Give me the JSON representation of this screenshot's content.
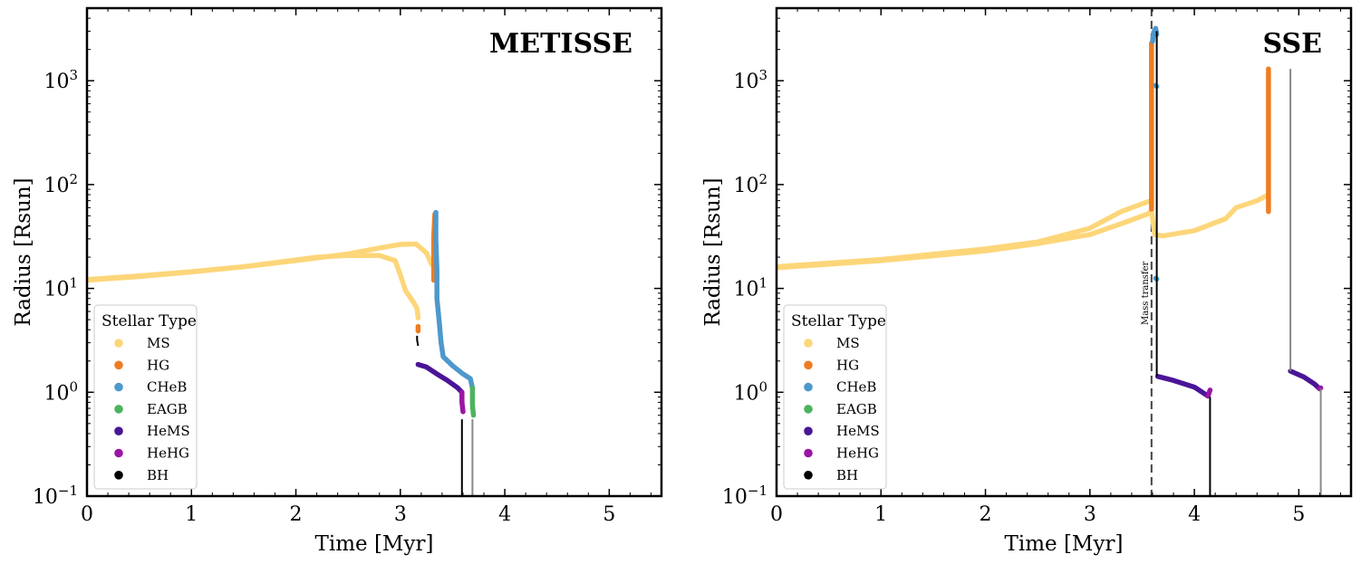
{
  "chart_data": [
    {
      "type": "line",
      "title": "METISSE",
      "xlabel": "Time [Myr]",
      "ylabel": "Radius [Rsun]",
      "xlim": [
        0,
        5.5
      ],
      "ylim": [
        0.1,
        5000
      ],
      "yscale": "log",
      "grid": false,
      "x_ticks": [
        "0",
        "1",
        "2",
        "3",
        "4",
        "5"
      ],
      "y_ticks": [
        {
          "base": "10",
          "exp": "−1"
        },
        {
          "base": "10",
          "exp": "0"
        },
        {
          "base": "10",
          "exp": "1"
        },
        {
          "base": "10",
          "exp": "2"
        },
        {
          "base": "10",
          "exp": "3"
        }
      ],
      "legend": {
        "title": "Stellar Type",
        "placement": "lower-left",
        "entries": [
          {
            "label": "MS",
            "color": "#fdd67a"
          },
          {
            "label": "HG",
            "color": "#ee7d22"
          },
          {
            "label": "CHeB",
            "color": "#4e98cc"
          },
          {
            "label": "EAGB",
            "color": "#4db35d"
          },
          {
            "label": "HeMS",
            "color": "#4a1597"
          },
          {
            "label": "HeHG",
            "color": "#9a16a4"
          },
          {
            "label": "BH",
            "color": "#000000"
          }
        ]
      },
      "series": [
        {
          "type": "MS",
          "color": "#fdd67a",
          "points": [
            [
              0,
              12.2
            ],
            [
              0.5,
              13.2
            ],
            [
              1,
              14.5
            ],
            [
              1.5,
              16.2
            ],
            [
              2,
              18.5
            ],
            [
              2.5,
              21.5
            ],
            [
              2.8,
              24.5
            ],
            [
              3.0,
              26.5
            ],
            [
              3.15,
              26.8
            ],
            [
              3.25,
              22
            ],
            [
              3.3,
              17
            ]
          ]
        },
        {
          "type": "MS",
          "color": "#fdd67a",
          "points": [
            [
              0,
              12.0
            ],
            [
              0.5,
              13.0
            ],
            [
              1,
              14.4
            ],
            [
              1.5,
              16.2
            ],
            [
              2,
              18.8
            ],
            [
              2.2,
              20
            ],
            [
              2.5,
              20.8
            ],
            [
              2.8,
              20.7
            ],
            [
              2.95,
              18.5
            ],
            [
              3.0,
              13.5
            ],
            [
              3.05,
              9.5
            ],
            [
              3.12,
              7.5
            ],
            [
              3.16,
              6.4
            ],
            [
              3.17,
              5.2
            ]
          ]
        },
        {
          "type": "HG",
          "color": "#ee7d22",
          "points": [
            [
              3.17,
              4.3
            ],
            [
              3.17,
              3.9
            ]
          ]
        },
        {
          "type": "HG",
          "color": "#ee7d22",
          "points": [
            [
              3.32,
              12
            ],
            [
              3.32,
              32
            ],
            [
              3.33,
              52
            ]
          ]
        },
        {
          "type": "CHeB",
          "color": "#4e98cc",
          "points": [
            [
              3.34,
              54
            ],
            [
              3.34,
              30
            ],
            [
              3.35,
              15
            ],
            [
              3.35,
              8
            ],
            [
              3.37,
              5
            ],
            [
              3.39,
              3
            ],
            [
              3.41,
              2.2
            ],
            [
              3.5,
              1.8
            ],
            [
              3.6,
              1.5
            ],
            [
              3.67,
              1.35
            ],
            [
              3.69,
              1.1
            ]
          ]
        },
        {
          "type": "EAGB",
          "color": "#4db35d",
          "points": [
            [
              3.69,
              1.1
            ],
            [
              3.69,
              0.75
            ],
            [
              3.7,
              0.6
            ]
          ]
        },
        {
          "type": "HeMS",
          "color": "#4a1597",
          "points": [
            [
              3.17,
              1.85
            ],
            [
              3.25,
              1.75
            ],
            [
              3.35,
              1.5
            ],
            [
              3.45,
              1.3
            ],
            [
              3.55,
              1.1
            ],
            [
              3.59,
              1.0
            ]
          ]
        },
        {
          "type": "HeHG",
          "color": "#9a16a4",
          "points": [
            [
              3.59,
              1.0
            ],
            [
              3.59,
              0.8
            ],
            [
              3.6,
              0.65
            ]
          ]
        },
        {
          "type": "BH",
          "color": "#000000",
          "points": [
            [
              3.16,
              3.5
            ],
            [
              3.16,
              3.2
            ],
            [
              3.17,
              2.8
            ]
          ]
        },
        {
          "type": "BH",
          "color": "#000000",
          "points": [
            [
              3.59,
              0.55
            ],
            [
              3.59,
              0.1
            ]
          ]
        },
        {
          "type": "BH",
          "color": "#888888",
          "points": [
            [
              3.69,
              0.55
            ],
            [
              3.69,
              0.1
            ]
          ]
        }
      ],
      "annotations": []
    },
    {
      "type": "line",
      "title": "SSE",
      "xlabel": "Time [Myr]",
      "ylabel": "Radius [Rsun]",
      "xlim": [
        0,
        5.5
      ],
      "ylim": [
        0.1,
        5000
      ],
      "yscale": "log",
      "grid": false,
      "x_ticks": [
        "0",
        "1",
        "2",
        "3",
        "4",
        "5"
      ],
      "y_ticks": [
        {
          "base": "10",
          "exp": "−1"
        },
        {
          "base": "10",
          "exp": "0"
        },
        {
          "base": "10",
          "exp": "1"
        },
        {
          "base": "10",
          "exp": "2"
        },
        {
          "base": "10",
          "exp": "3"
        }
      ],
      "legend": {
        "title": "Stellar Type",
        "placement": "lower-left",
        "entries": [
          {
            "label": "MS",
            "color": "#fdd67a"
          },
          {
            "label": "HG",
            "color": "#ee7d22"
          },
          {
            "label": "CHeB",
            "color": "#4e98cc"
          },
          {
            "label": "EAGB",
            "color": "#4db35d"
          },
          {
            "label": "HeMS",
            "color": "#4a1597"
          },
          {
            "label": "HeHG",
            "color": "#9a16a4"
          },
          {
            "label": "BH",
            "color": "#000000"
          }
        ]
      },
      "series": [
        {
          "type": "MS",
          "color": "#fdd67a",
          "points": [
            [
              0,
              16.2
            ],
            [
              1,
              19
            ],
            [
              2,
              24
            ],
            [
              2.5,
              28
            ],
            [
              3,
              38
            ],
            [
              3.3,
              55
            ],
            [
              3.55,
              68
            ],
            [
              3.59,
              70
            ]
          ]
        },
        {
          "type": "MS",
          "color": "#fdd67a",
          "points": [
            [
              0,
              15.8
            ],
            [
              1,
              18.5
            ],
            [
              2,
              23
            ],
            [
              2.5,
              27
            ],
            [
              3,
              33
            ],
            [
              3.3,
              42
            ],
            [
              3.55,
              52
            ],
            [
              3.59,
              56
            ],
            [
              3.62,
              33
            ],
            [
              3.7,
              32
            ],
            [
              4,
              36
            ],
            [
              4.3,
              47
            ],
            [
              4.4,
              60
            ],
            [
              4.6,
              70
            ],
            [
              4.71,
              80
            ]
          ]
        },
        {
          "type": "HG",
          "color": "#ee7d22",
          "points": [
            [
              3.59,
              58
            ],
            [
              3.59,
              2300
            ]
          ]
        },
        {
          "type": "HG",
          "color": "#ee7d22",
          "points": [
            [
              4.71,
              55
            ],
            [
              4.71,
              1300
            ]
          ]
        },
        {
          "type": "CHeB",
          "color": "#4e98cc",
          "points": [
            [
              3.6,
              2400
            ],
            [
              3.61,
              2900
            ],
            [
              3.63,
              3200
            ],
            [
              3.64,
              2800
            ]
          ]
        },
        {
          "type": "CHeB",
          "color": "#4e98cc",
          "points": [
            [
              3.63,
              900
            ],
            [
              3.64,
              880
            ]
          ]
        },
        {
          "type": "CHeB",
          "color": "#4e98cc",
          "points": [
            [
              3.63,
              12.5
            ],
            [
              3.64,
              12.3
            ]
          ]
        },
        {
          "type": "HeMS",
          "color": "#4a1597",
          "points": [
            [
              3.65,
              1.42
            ],
            [
              3.8,
              1.3
            ],
            [
              4.0,
              1.12
            ],
            [
              4.13,
              0.92
            ]
          ]
        },
        {
          "type": "HeHG",
          "color": "#9a16a4",
          "points": [
            [
              4.13,
              0.92
            ],
            [
              4.15,
              1.05
            ]
          ]
        },
        {
          "type": "HeMS",
          "color": "#4a1597",
          "points": [
            [
              4.92,
              1.6
            ],
            [
              5.05,
              1.4
            ],
            [
              5.15,
              1.2
            ],
            [
              5.2,
              1.08
            ]
          ]
        },
        {
          "type": "HeHG",
          "color": "#9a16a4",
          "points": [
            [
              5.2,
              1.08
            ],
            [
              5.21,
              1.1
            ]
          ]
        },
        {
          "type": "BH",
          "color": "#000000",
          "points": [
            [
              3.64,
              3000
            ],
            [
              3.64,
              1.42
            ]
          ]
        },
        {
          "type": "BH",
          "color": "#000000",
          "points": [
            [
              4.15,
              0.9
            ],
            [
              4.15,
              0.1
            ]
          ]
        },
        {
          "type": "BH",
          "color": "#888888",
          "points": [
            [
              4.92,
              1300
            ],
            [
              4.92,
              1.6
            ]
          ]
        },
        {
          "type": "BH",
          "color": "#888888",
          "points": [
            [
              5.21,
              1.08
            ],
            [
              5.21,
              0.1
            ]
          ]
        }
      ],
      "annotations": [
        {
          "type": "vline",
          "x": 3.59,
          "style": "dashed",
          "label": "Mass transfer"
        }
      ]
    }
  ]
}
